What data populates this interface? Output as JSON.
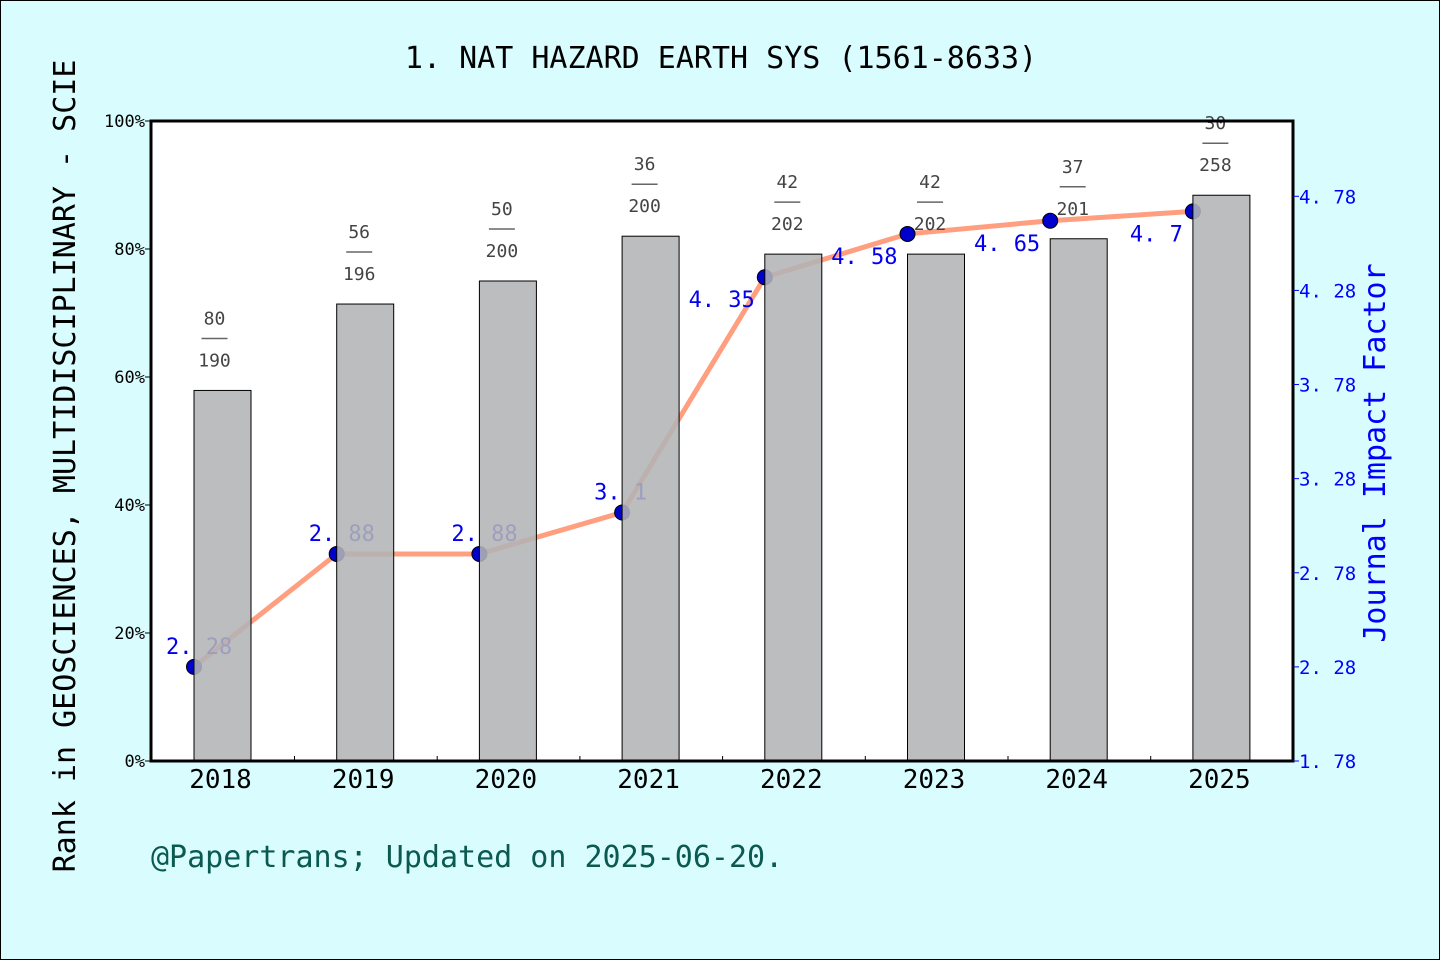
{
  "chart_data": {
    "type": "bar+line",
    "title": "1. NAT HAZARD EARTH SYS (1561-8633)",
    "ylabel_left": "Rank in GEOSCIENCES, MULTIDISCIPLINARY - SCIE",
    "ylabel_right": "Journal Impact Factor",
    "categories": [
      "2018",
      "2019",
      "2020",
      "2021",
      "2022",
      "2023",
      "2024",
      "2025"
    ],
    "ranks": [
      80,
      56,
      50,
      36,
      42,
      42,
      37,
      30
    ],
    "totals": [
      190,
      196,
      200,
      200,
      202,
      202,
      201,
      258
    ],
    "bar_values_percent": [
      57.9,
      71.4,
      75.0,
      82.0,
      79.2,
      79.2,
      81.6,
      88.4
    ],
    "impact_factor": [
      2.28,
      2.88,
      2.88,
      3.1,
      4.35,
      4.58,
      4.65,
      4.7
    ],
    "impact_factor_labels": [
      "2. 28",
      "2. 88",
      "2. 88",
      "3. 1",
      "4. 35",
      "4. 58",
      "4. 65",
      "4. 7"
    ],
    "left_ticks": [
      "0%",
      "20%",
      "40%",
      "60%",
      "80%",
      "100%"
    ],
    "left_ylim": [
      0,
      100
    ],
    "right_ticks": [
      "1. 78",
      "2. 28",
      "2. 78",
      "3. 28",
      "3. 78",
      "4. 28",
      "4. 78"
    ],
    "right_ylim": [
      1.78,
      5.18
    ],
    "grid": false,
    "colors": {
      "bar": "#b3b4b6",
      "line": "#ff9f7f",
      "marker": "#0000cc",
      "right_axis": "#0000ff",
      "background": "#d9fdfe",
      "footer": "#0b5a4f"
    }
  },
  "footer": "@Papertrans; Updated on 2025-06-20."
}
